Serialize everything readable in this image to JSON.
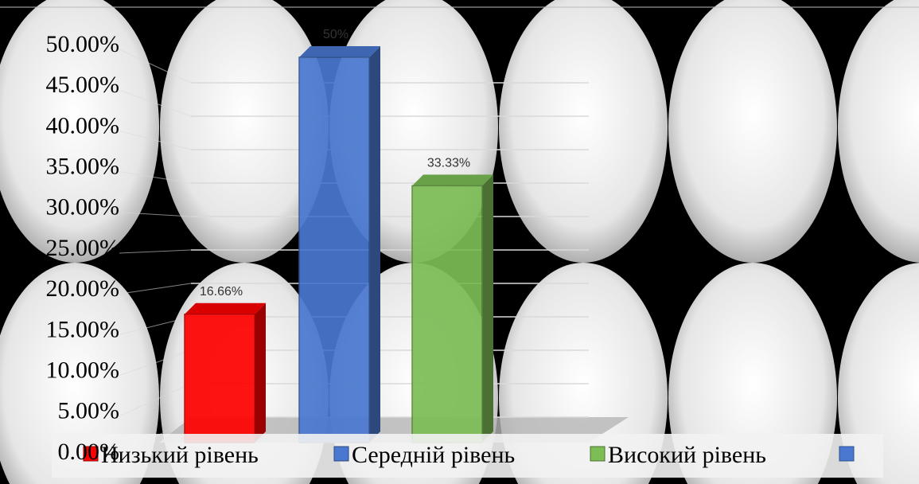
{
  "chart_data": {
    "type": "bar",
    "series": [
      {
        "name": "Низький рівень",
        "color": "#ff0000",
        "values": [
          16.66
        ],
        "value_labels": [
          "16.66%"
        ]
      },
      {
        "name": "Середній рівень",
        "color": "#4a78d0",
        "values": [
          50
        ],
        "value_labels": [
          "50%"
        ]
      },
      {
        "name": "Високий рівень",
        "color": "#7cbd55",
        "values": [
          33.33
        ],
        "value_labels": [
          "33.33%"
        ]
      }
    ],
    "ylim": [
      0,
      50
    ],
    "yticks": [
      {
        "value": 0,
        "label": "0.00%"
      },
      {
        "value": 5,
        "label": "5.00%"
      },
      {
        "value": 10,
        "label": "10.00%"
      },
      {
        "value": 15,
        "label": "15.00%"
      },
      {
        "value": 20,
        "label": "20.00%"
      },
      {
        "value": 25,
        "label": "25.00%"
      },
      {
        "value": 30,
        "label": "30.00%"
      },
      {
        "value": 35,
        "label": "35.00%"
      },
      {
        "value": 40,
        "label": "40.00%"
      },
      {
        "value": 45,
        "label": "45.00%"
      },
      {
        "value": 50,
        "label": "50.00%"
      }
    ],
    "grid": true
  }
}
